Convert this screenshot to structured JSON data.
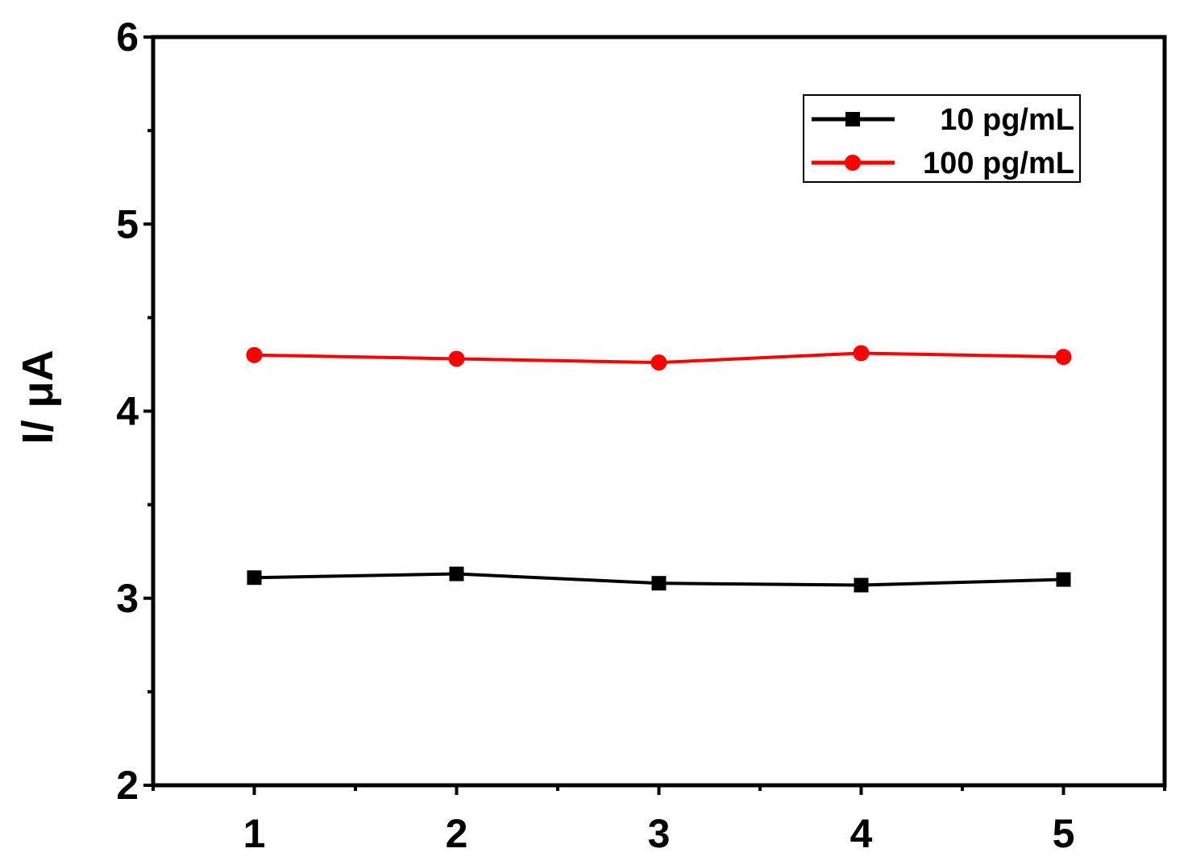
{
  "chart_data": {
    "type": "line",
    "title": "",
    "xlabel": "",
    "ylabel": "I/ μA",
    "x": [
      1,
      2,
      3,
      4,
      5
    ],
    "xticks": [
      "1",
      "2",
      "3",
      "4",
      "5"
    ],
    "xlim": [
      0.5,
      5.5
    ],
    "yticks": [
      "2",
      "3",
      "4",
      "5",
      "6"
    ],
    "ylim": [
      2,
      6
    ],
    "grid": false,
    "legend_position": "top-right",
    "series": [
      {
        "name": "10 pg/mL",
        "color": "#000000",
        "marker": "square",
        "values": [
          3.11,
          3.13,
          3.08,
          3.07,
          3.1
        ]
      },
      {
        "name": "100 pg/mL",
        "color": "#ff0000",
        "marker": "circle",
        "values": [
          4.3,
          4.28,
          4.26,
          4.31,
          4.29
        ]
      }
    ]
  }
}
